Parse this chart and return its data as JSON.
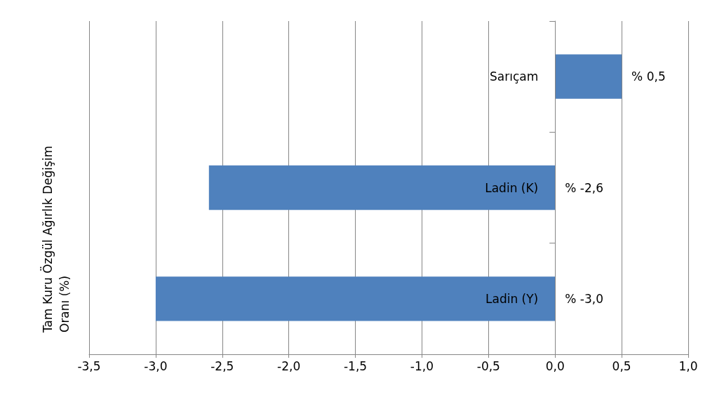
{
  "chart_data": {
    "type": "bar",
    "orientation": "horizontal",
    "ylabel": "Tam Kuru Özgül Ağırlık Değişim Oranı (%)",
    "categories": [
      "Sarıçam",
      "Ladin (K)",
      "Ladin (Y)"
    ],
    "series": [
      {
        "color": "#4f81bd",
        "values": [
          0.5,
          -2.6,
          -3.0
        ],
        "value_labels": [
          "% 0,5",
          "% -2,6",
          "% -3,0"
        ]
      }
    ],
    "xlim": [
      -3.5,
      1.0
    ],
    "xticks": [
      {
        "value": -3.5,
        "label": "-3,5"
      },
      {
        "value": -3.0,
        "label": "-3,0"
      },
      {
        "value": -2.5,
        "label": "-2,5"
      },
      {
        "value": -2.0,
        "label": "-2,0"
      },
      {
        "value": -1.5,
        "label": "-1,5"
      },
      {
        "value": -1.0,
        "label": "-1,0"
      },
      {
        "value": -0.5,
        "label": "-0,5"
      },
      {
        "value": 0,
        "label": "0,0"
      },
      {
        "value": 0.5,
        "label": "0,5"
      },
      {
        "value": 1.0,
        "label": "1,0"
      }
    ],
    "grid": "x"
  }
}
